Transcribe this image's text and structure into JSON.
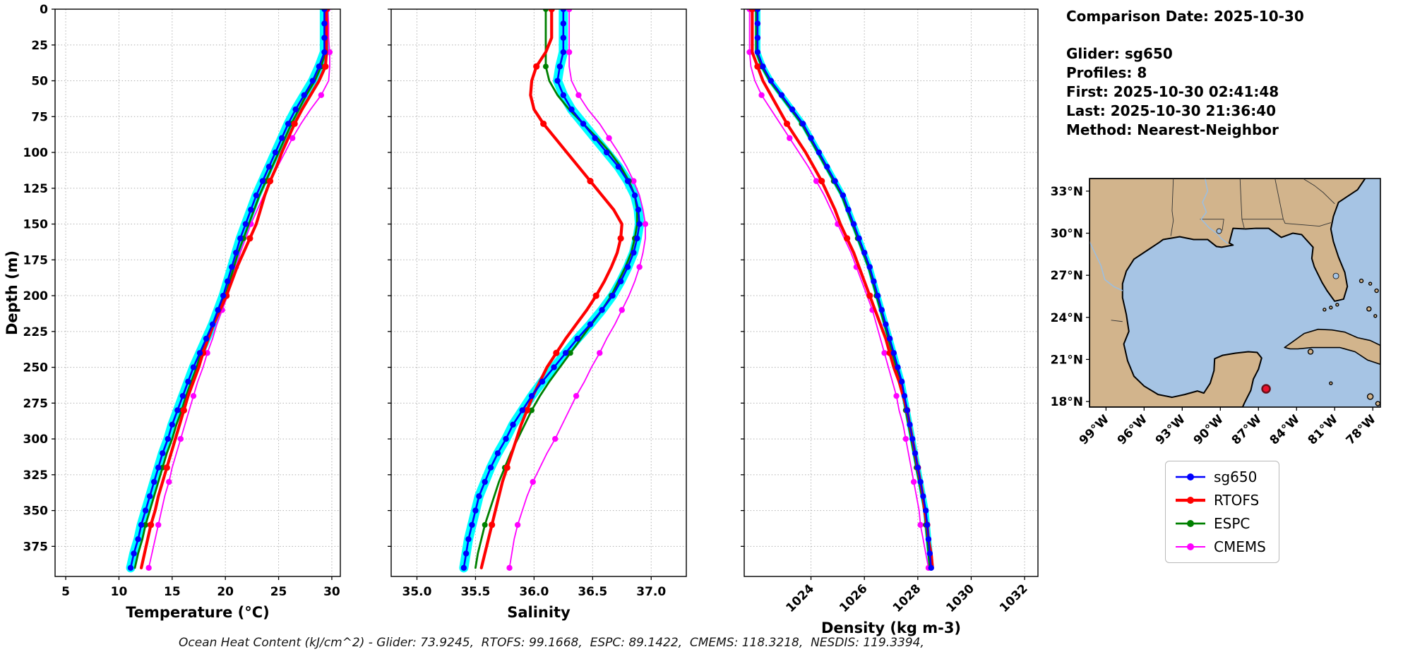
{
  "info_panel": {
    "comparison_date": "Comparison Date: 2025-10-30",
    "glider": "Glider: sg650",
    "profiles": "Profiles: 8",
    "first": "First: 2025-10-30 02:41:48",
    "last": "Last: 2025-10-30 21:36:40",
    "method": "Method: Nearest-Neighbor"
  },
  "caption": "Ocean Heat Content (kJ/cm^2) - Glider: 73.9245,  RTOFS: 99.1668,  ESPC: 89.1422,  CMEMS: 118.3218,  NESDIS: 119.3394,",
  "legend": {
    "entries": [
      {
        "label": "sg650",
        "color": "#0000ff"
      },
      {
        "label": "RTOFS",
        "color": "#ff0000"
      },
      {
        "label": "ESPC",
        "color": "#008000"
      },
      {
        "label": "CMEMS",
        "color": "#ff00ff"
      }
    ]
  },
  "map": {
    "land_color": "#d2b48c",
    "water_color": "#a6c4e4",
    "lat_tick_values": [
      18,
      21,
      24,
      27,
      30,
      33
    ],
    "lat_tick_labels": [
      "18°N",
      "21°N",
      "24°N",
      "27°N",
      "30°N",
      "33°N"
    ],
    "lon_tick_values": [
      99,
      96,
      93,
      90,
      87,
      84,
      81,
      78
    ],
    "lon_tick_labels": [
      "99°W",
      "96°W",
      "93°W",
      "90°W",
      "87°W",
      "84°W",
      "81°W",
      "78°W"
    ],
    "marker": {
      "lon_w": 86.4,
      "lat_n": 18.9,
      "fill": "#e8112d",
      "edge": "#6b0f1a"
    }
  },
  "chart_data": [
    {
      "type": "line",
      "title": "",
      "xlabel": "Temperature (°C)",
      "ylabel": "Depth (m)",
      "xlim": [
        4.0,
        30.8
      ],
      "ylim": [
        0,
        396
      ],
      "grid": true,
      "legend_position": "outside-right",
      "xticks": [
        5,
        10,
        15,
        20,
        25,
        30
      ],
      "xtick_labels": [
        "5",
        "10",
        "15",
        "20",
        "25",
        "30"
      ],
      "yticks": [
        0,
        25,
        50,
        75,
        100,
        125,
        150,
        175,
        200,
        225,
        250,
        275,
        300,
        325,
        350,
        375
      ],
      "ytick_labels": [
        "0",
        "25",
        "50",
        "75",
        "100",
        "125",
        "150",
        "175",
        "200",
        "225",
        "250",
        "275",
        "300",
        "325",
        "350",
        "375"
      ],
      "rotate_xticks": false,
      "envelope": {
        "name": "glider-envelope",
        "color": "#00ffff",
        "width": 13
      },
      "depths": [
        0,
        10,
        20,
        30,
        40,
        50,
        60,
        70,
        80,
        90,
        100,
        110,
        120,
        130,
        140,
        150,
        160,
        170,
        180,
        190,
        200,
        210,
        220,
        230,
        240,
        250,
        260,
        270,
        280,
        290,
        300,
        310,
        320,
        330,
        340,
        350,
        360,
        370,
        380,
        390
      ],
      "series": [
        {
          "name": "sg650",
          "color": "#0000ff",
          "width": 2.6,
          "marker_every": 1,
          "marker_size": 4.2,
          "values": [
            29.3,
            29.3,
            29.3,
            29.3,
            28.8,
            28.2,
            27.4,
            26.6,
            25.9,
            25.3,
            24.7,
            24.1,
            23.5,
            22.9,
            22.4,
            21.9,
            21.4,
            21.0,
            20.6,
            20.2,
            19.8,
            19.3,
            18.8,
            18.2,
            17.6,
            17.0,
            16.5,
            16.0,
            15.5,
            15.0,
            14.6,
            14.1,
            13.7,
            13.3,
            12.9,
            12.5,
            12.1,
            11.8,
            11.4,
            11.1
          ]
        },
        {
          "name": "RTOFS",
          "color": "#ff0000",
          "width": 4.2,
          "marker_every": 4,
          "marker_size": 4.6,
          "values": [
            29.5,
            29.5,
            29.5,
            29.5,
            29.4,
            28.8,
            28.0,
            27.2,
            26.5,
            25.9,
            25.3,
            24.8,
            24.2,
            23.7,
            23.3,
            22.9,
            22.3,
            21.7,
            21.1,
            20.6,
            20.1,
            19.5,
            18.9,
            18.4,
            17.9,
            17.5,
            17.0,
            16.5,
            16.1,
            15.7,
            15.3,
            14.9,
            14.5,
            14.1,
            13.7,
            13.4,
            13.0,
            12.7,
            12.4,
            12.1
          ]
        },
        {
          "name": "ESPC",
          "color": "#008000",
          "width": 2.8,
          "marker_every": 4,
          "marker_size": 4.0,
          "values": [
            29.4,
            29.4,
            29.4,
            29.4,
            29.0,
            28.4,
            27.6,
            26.9,
            26.2,
            25.6,
            25.0,
            24.4,
            23.8,
            23.2,
            22.7,
            22.2,
            21.7,
            21.2,
            20.8,
            20.4,
            20.0,
            19.4,
            18.8,
            18.2,
            17.7,
            17.3,
            16.8,
            16.3,
            15.9,
            15.4,
            15.0,
            14.5,
            14.1,
            13.7,
            13.3,
            12.9,
            12.5,
            12.2,
            11.8,
            11.5
          ]
        },
        {
          "name": "CMEMS",
          "color": "#ff00ff",
          "width": 1.8,
          "marker_every": 3,
          "marker_size": 4.2,
          "values": [
            29.6,
            29.7,
            29.7,
            29.8,
            29.8,
            29.7,
            29.0,
            28.0,
            27.1,
            26.3,
            25.6,
            24.9,
            24.2,
            23.6,
            23.0,
            22.4,
            21.9,
            21.4,
            21.0,
            20.6,
            20.2,
            19.7,
            19.2,
            18.8,
            18.3,
            17.9,
            17.4,
            17.0,
            16.6,
            16.2,
            15.8,
            15.4,
            15.0,
            14.7,
            14.3,
            14.0,
            13.7,
            13.4,
            13.1,
            12.8
          ]
        }
      ]
    },
    {
      "type": "line",
      "title": "",
      "xlabel": "Salinity",
      "ylabel": "",
      "xlim": [
        34.78,
        37.3
      ],
      "ylim": [
        0,
        396
      ],
      "grid": true,
      "xticks": [
        35.0,
        35.5,
        36.0,
        36.5,
        37.0
      ],
      "xtick_labels": [
        "35.0",
        "35.5",
        "36.0",
        "36.5",
        "37.0"
      ],
      "yticks": [
        0,
        25,
        50,
        75,
        100,
        125,
        150,
        175,
        200,
        225,
        250,
        275,
        300,
        325,
        350,
        375
      ],
      "ytick_labels": [],
      "rotate_xticks": false,
      "envelope": {
        "name": "glider-envelope",
        "color": "#00ffff",
        "width": 13
      },
      "depths": [
        0,
        10,
        20,
        30,
        40,
        50,
        60,
        70,
        80,
        90,
        100,
        110,
        120,
        130,
        140,
        150,
        160,
        170,
        180,
        190,
        200,
        210,
        220,
        230,
        240,
        250,
        260,
        270,
        280,
        290,
        300,
        310,
        320,
        330,
        340,
        350,
        360,
        370,
        380,
        390
      ],
      "series": [
        {
          "name": "sg650",
          "color": "#0000ff",
          "width": 2.6,
          "marker_every": 1,
          "marker_size": 4.2,
          "values": [
            36.25,
            36.25,
            36.25,
            36.25,
            36.22,
            36.2,
            36.25,
            36.32,
            36.42,
            36.52,
            36.62,
            36.72,
            36.8,
            36.86,
            36.89,
            36.9,
            36.88,
            36.85,
            36.8,
            36.74,
            36.67,
            36.58,
            36.48,
            36.37,
            36.27,
            36.17,
            36.07,
            35.98,
            35.9,
            35.82,
            35.76,
            35.69,
            35.63,
            35.58,
            35.53,
            35.5,
            35.47,
            35.44,
            35.42,
            35.4
          ]
        },
        {
          "name": "RTOFS",
          "color": "#ff0000",
          "width": 4.2,
          "marker_every": 4,
          "marker_size": 4.6,
          "values": [
            36.15,
            36.15,
            36.15,
            36.1,
            36.02,
            35.98,
            35.97,
            36.0,
            36.08,
            36.18,
            36.28,
            36.38,
            36.48,
            36.58,
            36.68,
            36.75,
            36.74,
            36.71,
            36.66,
            36.6,
            36.53,
            36.45,
            36.36,
            36.27,
            36.19,
            36.11,
            36.05,
            35.99,
            35.94,
            35.89,
            35.85,
            35.81,
            35.77,
            35.73,
            35.7,
            35.67,
            35.64,
            35.61,
            35.58,
            35.55
          ]
        },
        {
          "name": "ESPC",
          "color": "#008000",
          "width": 2.8,
          "marker_every": 4,
          "marker_size": 4.0,
          "values": [
            36.1,
            36.1,
            36.1,
            36.1,
            36.1,
            36.13,
            36.2,
            36.3,
            36.42,
            36.54,
            36.65,
            36.74,
            36.81,
            36.86,
            36.88,
            36.88,
            36.86,
            36.83,
            36.78,
            36.72,
            36.66,
            36.58,
            36.49,
            36.4,
            36.31,
            36.22,
            36.13,
            36.05,
            35.98,
            35.92,
            35.86,
            35.8,
            35.75,
            35.7,
            35.66,
            35.62,
            35.58,
            35.55,
            35.52,
            35.5
          ]
        },
        {
          "name": "CMEMS",
          "color": "#ff00ff",
          "width": 1.8,
          "marker_every": 3,
          "marker_size": 4.2,
          "values": [
            36.3,
            36.3,
            36.3,
            36.3,
            36.3,
            36.32,
            36.38,
            36.46,
            36.56,
            36.64,
            36.72,
            36.79,
            36.85,
            36.9,
            36.93,
            36.95,
            36.95,
            36.93,
            36.9,
            36.86,
            36.81,
            36.75,
            36.69,
            36.62,
            36.56,
            36.49,
            36.43,
            36.36,
            36.3,
            36.24,
            36.18,
            36.11,
            36.05,
            35.99,
            35.94,
            35.9,
            35.86,
            35.83,
            35.81,
            35.79
          ]
        }
      ]
    },
    {
      "type": "line",
      "title": "",
      "xlabel": "Density (kg m-3)",
      "ylabel": "",
      "xlim": [
        1021.5,
        1032.5
      ],
      "ylim": [
        0,
        396
      ],
      "grid": true,
      "xticks": [
        1024,
        1026,
        1028,
        1030,
        1032
      ],
      "xtick_labels": [
        "1024",
        "1026",
        "1028",
        "1030",
        "1032"
      ],
      "yticks": [
        0,
        25,
        50,
        75,
        100,
        125,
        150,
        175,
        200,
        225,
        250,
        275,
        300,
        325,
        350,
        375
      ],
      "ytick_labels": [],
      "rotate_xticks": true,
      "envelope": {
        "name": "glider-envelope",
        "color": "#00ffff",
        "width": 8
      },
      "depths": [
        0,
        10,
        20,
        30,
        40,
        50,
        60,
        70,
        80,
        90,
        100,
        110,
        120,
        130,
        140,
        150,
        160,
        170,
        180,
        190,
        200,
        210,
        220,
        230,
        240,
        250,
        260,
        270,
        280,
        290,
        300,
        310,
        320,
        330,
        340,
        350,
        360,
        370,
        380,
        390
      ],
      "series": [
        {
          "name": "sg650",
          "color": "#0000ff",
          "width": 2.6,
          "marker_every": 1,
          "marker_size": 4.2,
          "values": [
            1022.0,
            1022.0,
            1022.0,
            1022.0,
            1022.2,
            1022.5,
            1022.9,
            1023.3,
            1023.7,
            1024.0,
            1024.3,
            1024.6,
            1024.9,
            1025.2,
            1025.4,
            1025.6,
            1025.8,
            1026.0,
            1026.2,
            1026.35,
            1026.5,
            1026.65,
            1026.8,
            1026.95,
            1027.1,
            1027.25,
            1027.4,
            1027.5,
            1027.6,
            1027.7,
            1027.8,
            1027.9,
            1028.0,
            1028.1,
            1028.2,
            1028.3,
            1028.35,
            1028.4,
            1028.45,
            1028.5
          ]
        },
        {
          "name": "RTOFS",
          "color": "#ff0000",
          "width": 4.2,
          "marker_every": 4,
          "marker_size": 4.6,
          "values": [
            1021.8,
            1021.8,
            1021.8,
            1021.8,
            1022.0,
            1022.2,
            1022.5,
            1022.8,
            1023.1,
            1023.45,
            1023.8,
            1024.1,
            1024.4,
            1024.65,
            1024.9,
            1025.1,
            1025.35,
            1025.6,
            1025.8,
            1026.0,
            1026.2,
            1026.4,
            1026.6,
            1026.8,
            1026.95,
            1027.1,
            1027.3,
            1027.45,
            1027.6,
            1027.7,
            1027.8,
            1027.9,
            1028.0,
            1028.1,
            1028.2,
            1028.25,
            1028.35,
            1028.4,
            1028.5,
            1028.55
          ]
        },
        {
          "name": "ESPC",
          "color": "#008000",
          "width": 2.8,
          "marker_every": 4,
          "marker_size": 4.0,
          "values": [
            1021.95,
            1021.95,
            1021.95,
            1021.95,
            1022.15,
            1022.45,
            1022.85,
            1023.25,
            1023.65,
            1023.95,
            1024.25,
            1024.55,
            1024.85,
            1025.15,
            1025.35,
            1025.55,
            1025.75,
            1025.95,
            1026.15,
            1026.3,
            1026.45,
            1026.6,
            1026.75,
            1026.9,
            1027.05,
            1027.2,
            1027.35,
            1027.45,
            1027.55,
            1027.65,
            1027.75,
            1027.85,
            1027.95,
            1028.05,
            1028.15,
            1028.25,
            1028.3,
            1028.35,
            1028.4,
            1028.45
          ]
        },
        {
          "name": "CMEMS",
          "color": "#ff00ff",
          "width": 1.8,
          "marker_every": 3,
          "marker_size": 4.2,
          "values": [
            1021.7,
            1021.7,
            1021.7,
            1021.7,
            1021.75,
            1021.9,
            1022.15,
            1022.5,
            1022.85,
            1023.2,
            1023.55,
            1023.9,
            1024.2,
            1024.5,
            1024.75,
            1025.0,
            1025.25,
            1025.5,
            1025.7,
            1025.9,
            1026.1,
            1026.3,
            1026.45,
            1026.6,
            1026.75,
            1026.9,
            1027.05,
            1027.2,
            1027.3,
            1027.45,
            1027.55,
            1027.65,
            1027.75,
            1027.85,
            1027.95,
            1028.05,
            1028.1,
            1028.2,
            1028.3,
            1028.4
          ]
        }
      ]
    }
  ]
}
